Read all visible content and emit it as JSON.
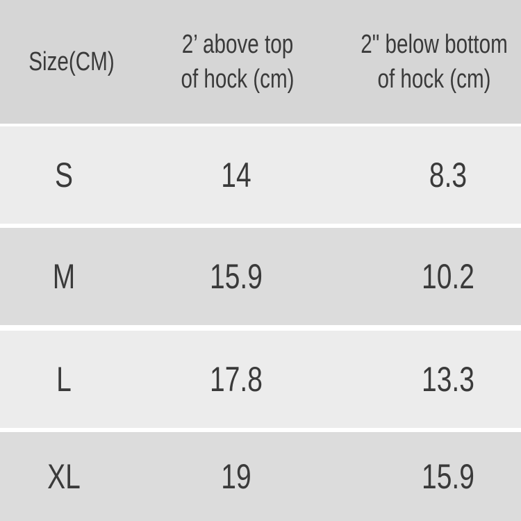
{
  "table": {
    "header": [
      [
        "Size(CM)"
      ],
      [
        "2’ above top",
        "of hock (cm)"
      ],
      [
        "2\" below bottom",
        "of hock (cm)"
      ]
    ],
    "rows": [
      [
        "S",
        "14",
        "8.3"
      ],
      [
        "M",
        "15.9",
        "10.2"
      ],
      [
        "L",
        "17.8",
        "13.3"
      ],
      [
        "XL",
        "19",
        "15.9"
      ]
    ]
  }
}
